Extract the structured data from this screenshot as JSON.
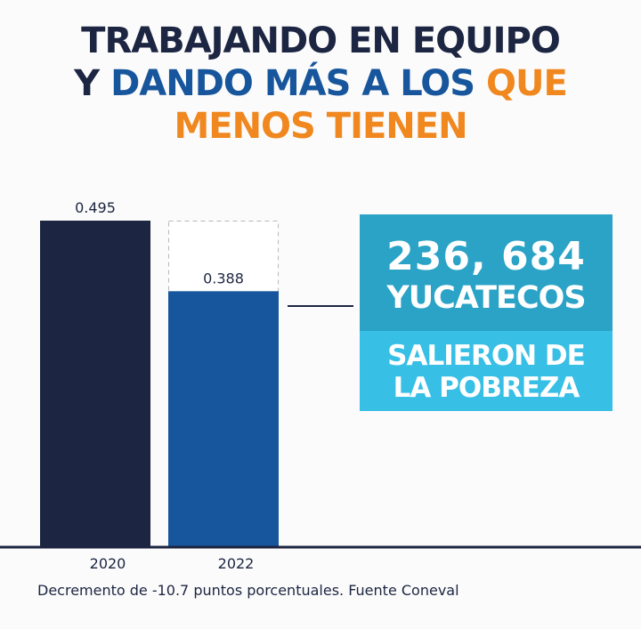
{
  "headline": {
    "line1": "TRABAJANDO EN EQUIPO",
    "line2_prefix": "Y ",
    "line2_blue": "DANDO MÁS A LOS ",
    "line2_orange": "QUE",
    "line3": "MENOS TIENEN"
  },
  "callout": {
    "number": "236, 684",
    "word": "YUCATECOS",
    "line1": "SALIERON DE",
    "line2": "LA POBREZA"
  },
  "footnote": "Decremento de -10.7 puntos porcentuales. Fuente Coneval",
  "colors": {
    "navy": "#1c2541",
    "blue": "#17569c",
    "orange": "#f0871f",
    "callout_dark": "#2aa3c6",
    "callout_light": "#37bfe6"
  },
  "chart_data": {
    "type": "bar",
    "categories": [
      "2020",
      "2022"
    ],
    "values": [
      0.495,
      0.388
    ],
    "value_labels": [
      "0.495",
      "0.388"
    ],
    "ylim": [
      0,
      0.495
    ],
    "reference": {
      "value": 0.495,
      "style": "dashed outline on 2022 bar"
    },
    "bar_colors": [
      "#1c2541",
      "#17569c"
    ],
    "grid": false,
    "title": "",
    "xlabel": "",
    "ylabel": ""
  }
}
